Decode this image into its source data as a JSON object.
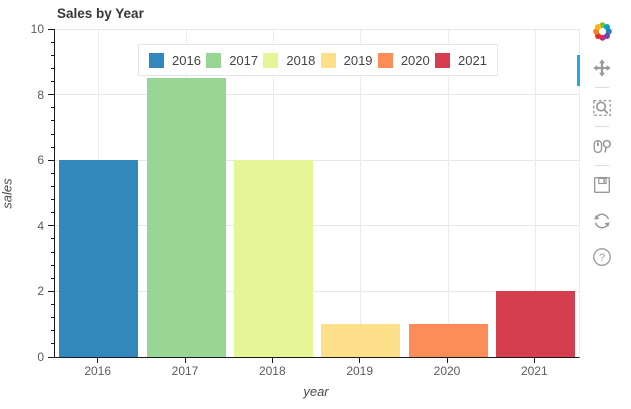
{
  "chart_data": {
    "type": "bar",
    "title": "Sales by Year",
    "xlabel": "year",
    "ylabel": "sales",
    "categories": [
      "2016",
      "2017",
      "2018",
      "2019",
      "2020",
      "2021"
    ],
    "values": [
      6,
      8.5,
      6,
      1,
      1,
      2
    ],
    "colors": [
      "#3288bd",
      "#99d594",
      "#e6f598",
      "#fee08b",
      "#fc8d59",
      "#d53e4f"
    ],
    "ylim": [
      0,
      10
    ],
    "y_ticks": [
      0,
      2,
      4,
      6,
      8,
      10
    ],
    "y_minor_step": 0.4,
    "grid": true,
    "legend": {
      "position": "top-center",
      "labels": [
        "2016",
        "2017",
        "2018",
        "2019",
        "2020",
        "2021"
      ]
    }
  },
  "toolbar": {
    "logo": "bokeh-logo",
    "active_color": "#26a7dd",
    "icon_color": "#989898",
    "tools": [
      {
        "id": "pan",
        "active": true
      },
      {
        "id": "box-zoom",
        "active": false
      },
      {
        "id": "wheel-zoom",
        "active": false
      },
      {
        "id": "save",
        "active": false
      },
      {
        "id": "reset",
        "active": false
      },
      {
        "id": "help",
        "active": false
      }
    ]
  }
}
